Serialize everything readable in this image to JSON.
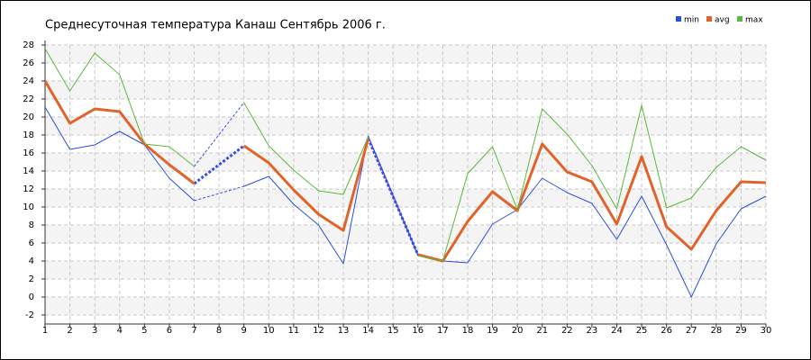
{
  "chart_data": {
    "type": "line",
    "title": "Среднесуточная температура Канаш  Сентябрь 2006 г.",
    "x": [
      1,
      2,
      3,
      4,
      5,
      6,
      7,
      8,
      9,
      10,
      11,
      12,
      13,
      14,
      15,
      16,
      17,
      18,
      19,
      20,
      21,
      22,
      23,
      24,
      25,
      26,
      27,
      28,
      29,
      30
    ],
    "series": [
      {
        "name": "min",
        "color": "#2a4fd8",
        "values": [
          21.1,
          16.4,
          16.9,
          18.4,
          16.9,
          13.2,
          10.7,
          null,
          12.3,
          13.4,
          10.3,
          8.0,
          3.7,
          17.9,
          null,
          4.7,
          4.0,
          3.8,
          8.1,
          9.7,
          13.2,
          11.6,
          10.4,
          6.4,
          11.2,
          5.8,
          0.0,
          5.9,
          9.8,
          11.2
        ]
      },
      {
        "name": "avg",
        "color": "#e0632a",
        "values": [
          24.0,
          19.3,
          20.9,
          20.6,
          17.0,
          14.7,
          12.6,
          null,
          16.8,
          14.9,
          11.9,
          9.2,
          7.4,
          17.6,
          null,
          4.7,
          4.0,
          8.4,
          11.7,
          9.6,
          17.0,
          13.9,
          12.8,
          8.1,
          15.6,
          7.8,
          5.3,
          9.6,
          12.8,
          12.7
        ]
      },
      {
        "name": "max",
        "color": "#5cb83c",
        "values": [
          27.6,
          22.9,
          27.1,
          24.7,
          17.0,
          16.7,
          14.5,
          null,
          21.6,
          16.8,
          14.1,
          11.8,
          11.4,
          17.8,
          null,
          4.6,
          4.0,
          13.7,
          16.7,
          9.7,
          20.9,
          18.1,
          14.6,
          9.8,
          21.3,
          9.9,
          11.0,
          14.4,
          16.7,
          15.2
        ]
      }
    ],
    "xlim": [
      1,
      30
    ],
    "xticks": [
      1,
      2,
      3,
      4,
      5,
      6,
      7,
      8,
      9,
      10,
      11,
      12,
      13,
      14,
      15,
      16,
      17,
      18,
      19,
      20,
      21,
      22,
      23,
      24,
      25,
      26,
      27,
      28,
      29,
      30
    ],
    "ylim": [
      -3,
      28
    ],
    "yticks": [
      -2,
      0,
      2,
      4,
      6,
      8,
      10,
      12,
      14,
      16,
      18,
      20,
      22,
      24,
      26,
      28
    ],
    "grid": true,
    "legend": "top-right"
  }
}
